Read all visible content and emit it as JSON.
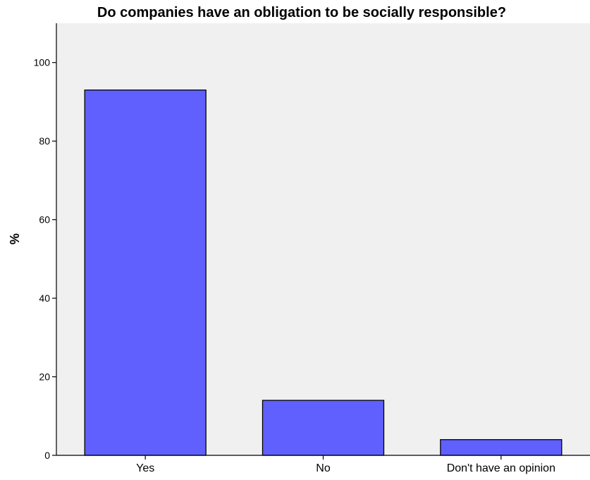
{
  "chart_data": {
    "type": "bar",
    "title": "Do companies have an obligation to be socially responsible?",
    "xlabel": "",
    "ylabel": "%",
    "categories": [
      "Yes",
      "No",
      "Don't have an opinion"
    ],
    "values": [
      93,
      14,
      4
    ],
    "ylim": [
      0,
      110
    ],
    "yticks": [
      0,
      20,
      40,
      60,
      80,
      100
    ],
    "ytick_labels": [
      "0",
      "20",
      "40",
      "60",
      "80",
      "100"
    ],
    "grid": false,
    "legend": "none",
    "colors": {
      "bar_fill": "#6060ff",
      "bar_stroke": "#000000",
      "plot_background": "#f0f0f0",
      "axis": "#000000"
    }
  }
}
